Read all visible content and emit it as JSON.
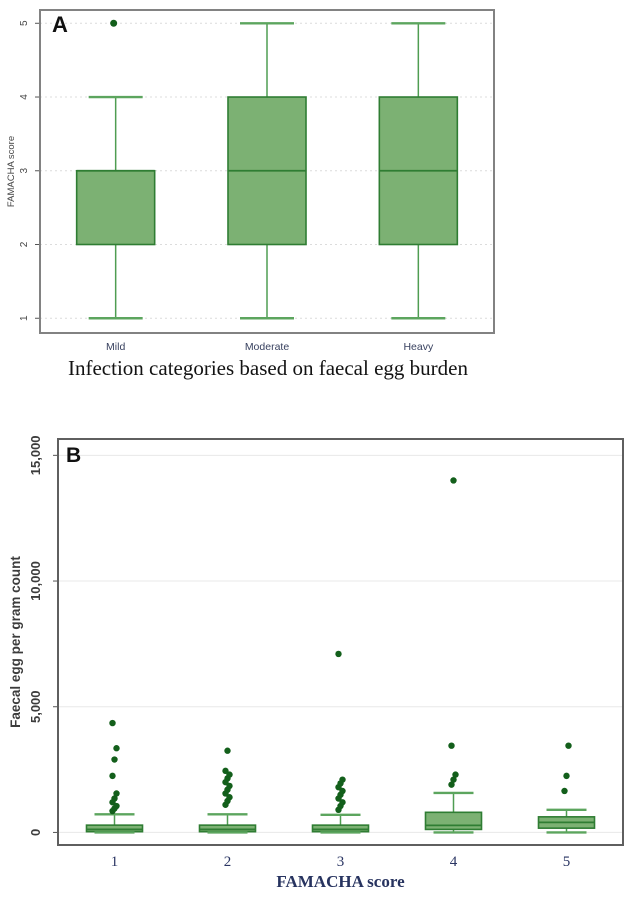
{
  "style": {
    "box_fill": "#7cb173",
    "box_stroke": "#2f7d33",
    "median_stroke": "#2f7d33",
    "whisker_stroke": "#4f9d52",
    "cap_stroke": "#5ca55e",
    "outlier_fill": "#135f1b",
    "frame_a": "#828282",
    "frame_b": "#5f5f5f",
    "grid_a": "#dcdcdc",
    "grid_b": "#e8e8e8",
    "tick_mark": "#555555",
    "tick_text_a": "#454545",
    "tick_text_b": "#3c3c3c",
    "cat_text_a": "#38415f",
    "cat_text_b": "#2a3563"
  },
  "chart_data": [
    {
      "id": "panel_a",
      "type": "box",
      "panel_label": "A",
      "title": "Infection categories based on faecal egg burden",
      "title_position": "bottom",
      "ylabel": "FAMACHA score",
      "xlabel": "",
      "categories": [
        "Mild",
        "Moderate",
        "Heavy"
      ],
      "yticks": [
        1,
        2,
        3,
        4,
        5
      ],
      "ytick_labels": [
        "1",
        "2",
        "3",
        "4",
        "5"
      ],
      "ylim": [
        0.8,
        5.18
      ],
      "grid": "dashed",
      "legend": "none",
      "series": [
        {
          "category": "Mild",
          "whisker_low": 1,
          "q1": 2,
          "median": 3,
          "q3": 3,
          "whisker_high": 4,
          "outliers": [
            5
          ]
        },
        {
          "category": "Moderate",
          "whisker_low": 1,
          "q1": 2,
          "median": 3,
          "q3": 4,
          "whisker_high": 5,
          "outliers": []
        },
        {
          "category": "Heavy",
          "whisker_low": 1,
          "q1": 2,
          "median": 3,
          "q3": 4,
          "whisker_high": 5,
          "outliers": []
        }
      ]
    },
    {
      "id": "panel_b",
      "type": "box",
      "panel_label": "B",
      "title": "",
      "ylabel": "Faecal egg per gram count",
      "xlabel": "FAMACHA score",
      "categories": [
        "1",
        "2",
        "3",
        "4",
        "5"
      ],
      "yticks": [
        0,
        5000,
        10000,
        15000
      ],
      "ytick_labels": [
        "0",
        "5,000",
        "10,000",
        "15,000"
      ],
      "ylim": [
        -500,
        15650
      ],
      "grid": "solid",
      "legend": "none",
      "series": [
        {
          "category": "1",
          "whisker_low": 0,
          "q1": 30,
          "median": 120,
          "q3": 290,
          "whisker_high": 720,
          "outliers": [
            850,
            950,
            1050,
            1200,
            1350,
            1550,
            2250,
            2900,
            3350,
            4350
          ]
        },
        {
          "category": "2",
          "whisker_low": 0,
          "q1": 30,
          "median": 120,
          "q3": 290,
          "whisker_high": 720,
          "outliers": [
            1100,
            1250,
            1400,
            1550,
            1700,
            1850,
            2000,
            2150,
            2300,
            2450,
            3250
          ]
        },
        {
          "category": "3",
          "whisker_low": 0,
          "q1": 30,
          "median": 120,
          "q3": 290,
          "whisker_high": 700,
          "outliers": [
            900,
            1050,
            1200,
            1350,
            1500,
            1650,
            1800,
            1950,
            2100,
            7100
          ]
        },
        {
          "category": "4",
          "whisker_low": 0,
          "q1": 120,
          "median": 280,
          "q3": 800,
          "whisker_high": 1570,
          "outliers": [
            1900,
            2100,
            2300,
            3450,
            14000
          ]
        },
        {
          "category": "5",
          "whisker_low": 0,
          "q1": 170,
          "median": 400,
          "q3": 620,
          "whisker_high": 900,
          "outliers": [
            1650,
            2250,
            3450
          ]
        }
      ]
    }
  ]
}
